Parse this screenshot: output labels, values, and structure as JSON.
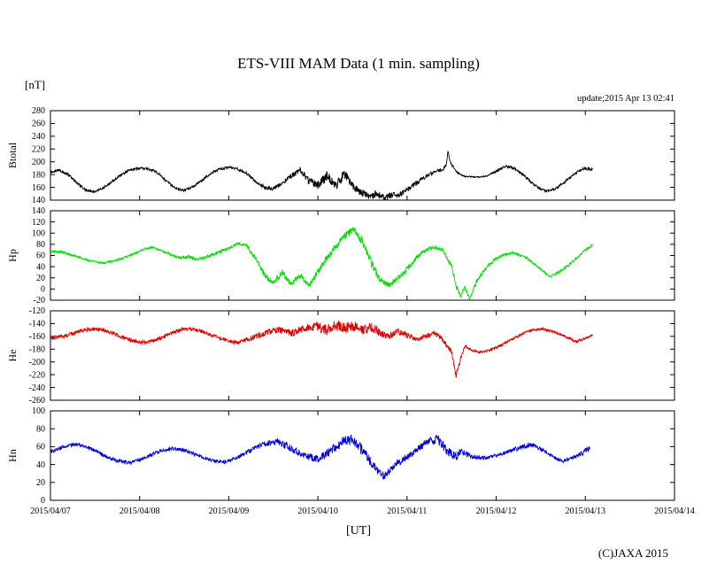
{
  "page": {
    "title": "ETS-VIII MAM Data (1 min. sampling)",
    "unit_label": "[nT]",
    "update_label": "update;2015 Apr 13 02:41",
    "x_axis_label": "[UT]",
    "copyright": "(C)JAXA 2015",
    "background": "#ffffff"
  },
  "chart_data": {
    "type": "line",
    "title": "ETS-VIII MAM Data (1 min. sampling)",
    "xlabel": "[UT]",
    "y_unit": "[nT]",
    "x_unit": "days since 2015/04/07 00:00 UT",
    "xlim": [
      0,
      7
    ],
    "x_tick_labels": [
      "2015/04/07",
      "2015/04/08",
      "2015/04/09",
      "2015/04/10",
      "2015/04/11",
      "2015/04/12",
      "2015/04/13",
      "2015/04/14"
    ],
    "grid": false,
    "legend_position": "none",
    "points_format": "[t_days, value_nT, noise_amplitude_nT]",
    "panels": [
      {
        "id": "btotal",
        "label": "Btotal",
        "color": "#000000",
        "ylim": [
          140,
          280
        ],
        "ytick_step": 20,
        "points": [
          [
            0,
            184,
            2
          ],
          [
            0.1,
            187,
            2
          ],
          [
            0.2,
            180,
            2
          ],
          [
            0.3,
            166,
            2
          ],
          [
            0.4,
            156,
            2
          ],
          [
            0.5,
            153,
            2
          ],
          [
            0.6,
            160,
            2
          ],
          [
            0.7,
            170,
            2
          ],
          [
            0.8,
            180,
            2
          ],
          [
            0.9,
            188,
            2
          ],
          [
            1,
            190,
            2
          ],
          [
            1.1,
            189,
            2
          ],
          [
            1.2,
            183,
            2
          ],
          [
            1.3,
            170,
            2
          ],
          [
            1.4,
            159,
            2
          ],
          [
            1.5,
            155,
            2
          ],
          [
            1.6,
            161,
            2
          ],
          [
            1.7,
            171,
            2
          ],
          [
            1.8,
            182,
            2
          ],
          [
            1.9,
            189,
            2
          ],
          [
            2,
            191,
            2
          ],
          [
            2.1,
            189,
            2
          ],
          [
            2.2,
            182,
            2
          ],
          [
            2.3,
            169,
            2
          ],
          [
            2.4,
            160,
            3
          ],
          [
            2.5,
            158,
            3
          ],
          [
            2.6,
            167,
            3
          ],
          [
            2.7,
            178,
            4
          ],
          [
            2.8,
            186,
            5
          ],
          [
            2.85,
            178,
            6
          ],
          [
            2.9,
            170,
            6
          ],
          [
            3,
            163,
            6
          ],
          [
            3.05,
            170,
            7
          ],
          [
            3.1,
            178,
            8
          ],
          [
            3.15,
            170,
            8
          ],
          [
            3.2,
            163,
            7
          ],
          [
            3.25,
            172,
            8
          ],
          [
            3.3,
            180,
            8
          ],
          [
            3.35,
            171,
            7
          ],
          [
            3.4,
            160,
            6
          ],
          [
            3.45,
            155,
            6
          ],
          [
            3.5,
            151,
            6
          ],
          [
            3.55,
            148,
            6
          ],
          [
            3.6,
            145,
            6
          ],
          [
            3.65,
            150,
            6
          ],
          [
            3.7,
            147,
            5
          ],
          [
            3.75,
            143,
            5
          ],
          [
            3.8,
            146,
            5
          ],
          [
            3.85,
            150,
            5
          ],
          [
            3.9,
            147,
            4
          ],
          [
            3.95,
            151,
            4
          ],
          [
            4,
            156,
            4
          ],
          [
            4.1,
            166,
            4
          ],
          [
            4.2,
            176,
            3
          ],
          [
            4.3,
            184,
            3
          ],
          [
            4.4,
            188,
            3
          ],
          [
            4.44,
            195,
            2
          ],
          [
            4.46,
            218,
            2
          ],
          [
            4.48,
            200,
            2
          ],
          [
            4.55,
            185,
            2
          ],
          [
            4.6,
            180,
            2
          ],
          [
            4.65,
            177,
            1
          ],
          [
            4.8,
            176,
            1
          ],
          [
            4.9,
            178,
            1
          ],
          [
            5,
            185,
            2
          ],
          [
            5.1,
            193,
            2
          ],
          [
            5.2,
            190,
            2
          ],
          [
            5.3,
            180,
            2
          ],
          [
            5.4,
            167,
            2
          ],
          [
            5.5,
            157,
            2
          ],
          [
            5.6,
            154,
            2
          ],
          [
            5.7,
            161,
            2
          ],
          [
            5.8,
            172,
            2
          ],
          [
            5.9,
            183,
            2
          ],
          [
            6,
            190,
            3
          ],
          [
            6.08,
            188,
            3
          ]
        ]
      },
      {
        "id": "hp",
        "label": "Hp",
        "color": "#00dd00",
        "ylim": [
          -20,
          140
        ],
        "ytick_step": 20,
        "points": [
          [
            0,
            68,
            2
          ],
          [
            0.15,
            65,
            2
          ],
          [
            0.3,
            58,
            2
          ],
          [
            0.45,
            50,
            2
          ],
          [
            0.6,
            47,
            2
          ],
          [
            0.75,
            52,
            2
          ],
          [
            0.9,
            60,
            2
          ],
          [
            1.05,
            72,
            2
          ],
          [
            1.15,
            75,
            2
          ],
          [
            1.3,
            65,
            2
          ],
          [
            1.45,
            55,
            3
          ],
          [
            1.55,
            58,
            3
          ],
          [
            1.65,
            52,
            3
          ],
          [
            1.8,
            60,
            3
          ],
          [
            1.95,
            70,
            3
          ],
          [
            2.1,
            80,
            3
          ],
          [
            2.2,
            78,
            3
          ],
          [
            2.3,
            55,
            4
          ],
          [
            2.4,
            25,
            5
          ],
          [
            2.5,
            10,
            5
          ],
          [
            2.6,
            30,
            5
          ],
          [
            2.7,
            8,
            5
          ],
          [
            2.8,
            25,
            5
          ],
          [
            2.9,
            6,
            5
          ],
          [
            3,
            30,
            6
          ],
          [
            3.1,
            55,
            6
          ],
          [
            3.2,
            75,
            6
          ],
          [
            3.3,
            95,
            6
          ],
          [
            3.4,
            107,
            6
          ],
          [
            3.5,
            85,
            8
          ],
          [
            3.6,
            45,
            8
          ],
          [
            3.7,
            15,
            6
          ],
          [
            3.8,
            8,
            6
          ],
          [
            3.9,
            20,
            5
          ],
          [
            4,
            35,
            5
          ],
          [
            4.1,
            55,
            4
          ],
          [
            4.2,
            68,
            4
          ],
          [
            4.3,
            75,
            3
          ],
          [
            4.4,
            70,
            3
          ],
          [
            4.5,
            40,
            5
          ],
          [
            4.55,
            5,
            5
          ],
          [
            4.6,
            -14,
            4
          ],
          [
            4.65,
            5,
            4
          ],
          [
            4.7,
            -18,
            3
          ],
          [
            4.8,
            20,
            4
          ],
          [
            4.9,
            40,
            3
          ],
          [
            5,
            55,
            3
          ],
          [
            5.1,
            62,
            2
          ],
          [
            5.2,
            65,
            2
          ],
          [
            5.35,
            55,
            2
          ],
          [
            5.5,
            35,
            2
          ],
          [
            5.6,
            22,
            2
          ],
          [
            5.7,
            30,
            3
          ],
          [
            5.8,
            42,
            3
          ],
          [
            5.9,
            55,
            2
          ],
          [
            6,
            70,
            2
          ],
          [
            6.08,
            78,
            2
          ]
        ]
      },
      {
        "id": "he",
        "label": "He",
        "color": "#dd0000",
        "ylim": [
          -260,
          -120
        ],
        "ytick_step": 20,
        "points": [
          [
            0,
            -163,
            3
          ],
          [
            0.15,
            -160,
            3
          ],
          [
            0.3,
            -153,
            3
          ],
          [
            0.45,
            -148,
            3
          ],
          [
            0.6,
            -150,
            3
          ],
          [
            0.75,
            -158,
            3
          ],
          [
            0.9,
            -166,
            3
          ],
          [
            1.05,
            -170,
            3
          ],
          [
            1.2,
            -165,
            3
          ],
          [
            1.35,
            -155,
            3
          ],
          [
            1.5,
            -148,
            3
          ],
          [
            1.65,
            -150,
            3
          ],
          [
            1.8,
            -158,
            3
          ],
          [
            1.95,
            -166,
            3
          ],
          [
            2.1,
            -170,
            3
          ],
          [
            2.25,
            -163,
            4
          ],
          [
            2.4,
            -155,
            5
          ],
          [
            2.55,
            -150,
            5
          ],
          [
            2.7,
            -155,
            6
          ],
          [
            2.85,
            -148,
            6
          ],
          [
            3,
            -145,
            8
          ],
          [
            3.1,
            -150,
            8
          ],
          [
            3.2,
            -142,
            8
          ],
          [
            3.3,
            -148,
            9
          ],
          [
            3.4,
            -143,
            9
          ],
          [
            3.5,
            -150,
            8
          ],
          [
            3.6,
            -145,
            8
          ],
          [
            3.7,
            -155,
            6
          ],
          [
            3.8,
            -160,
            5
          ],
          [
            3.9,
            -152,
            5
          ],
          [
            4,
            -158,
            5
          ],
          [
            4.1,
            -165,
            4
          ],
          [
            4.2,
            -160,
            4
          ],
          [
            4.3,
            -155,
            4
          ],
          [
            4.4,
            -165,
            4
          ],
          [
            4.5,
            -185,
            5
          ],
          [
            4.55,
            -222,
            4
          ],
          [
            4.6,
            -195,
            4
          ],
          [
            4.65,
            -175,
            3
          ],
          [
            4.7,
            -180,
            2
          ],
          [
            4.8,
            -185,
            2
          ],
          [
            4.9,
            -183,
            2
          ],
          [
            5,
            -178,
            2
          ],
          [
            5.1,
            -170,
            2
          ],
          [
            5.2,
            -163,
            2
          ],
          [
            5.35,
            -152,
            2
          ],
          [
            5.5,
            -148,
            2
          ],
          [
            5.65,
            -153,
            2
          ],
          [
            5.8,
            -162,
            2
          ],
          [
            5.9,
            -168,
            2
          ],
          [
            6,
            -163,
            2
          ],
          [
            6.08,
            -158,
            2
          ]
        ]
      },
      {
        "id": "hn",
        "label": "Hn",
        "color": "#0000dd",
        "ylim": [
          0,
          100
        ],
        "ytick_step": 20,
        "points": [
          [
            0,
            54,
            2
          ],
          [
            0.15,
            60,
            2
          ],
          [
            0.3,
            63,
            2
          ],
          [
            0.45,
            58,
            2
          ],
          [
            0.6,
            50,
            2
          ],
          [
            0.75,
            44,
            2
          ],
          [
            0.9,
            42,
            2
          ],
          [
            1.05,
            47,
            2
          ],
          [
            1.2,
            54,
            2
          ],
          [
            1.35,
            58,
            2
          ],
          [
            1.5,
            56,
            2
          ],
          [
            1.65,
            50,
            2
          ],
          [
            1.8,
            45,
            2
          ],
          [
            1.95,
            43,
            2
          ],
          [
            2.1,
            48,
            2
          ],
          [
            2.25,
            56,
            3
          ],
          [
            2.4,
            63,
            3
          ],
          [
            2.55,
            66,
            4
          ],
          [
            2.7,
            58,
            4
          ],
          [
            2.85,
            50,
            4
          ],
          [
            3,
            46,
            4
          ],
          [
            3.1,
            52,
            5
          ],
          [
            3.2,
            60,
            5
          ],
          [
            3.3,
            67,
            6
          ],
          [
            3.4,
            68,
            6
          ],
          [
            3.5,
            55,
            6
          ],
          [
            3.6,
            42,
            5
          ],
          [
            3.7,
            30,
            5
          ],
          [
            3.75,
            27,
            4
          ],
          [
            3.85,
            38,
            4
          ],
          [
            3.95,
            45,
            4
          ],
          [
            4.05,
            52,
            4
          ],
          [
            4.15,
            60,
            4
          ],
          [
            4.25,
            66,
            5
          ],
          [
            4.35,
            68,
            5
          ],
          [
            4.45,
            55,
            5
          ],
          [
            4.55,
            48,
            5
          ],
          [
            4.6,
            55,
            4
          ],
          [
            4.7,
            50,
            3
          ],
          [
            4.8,
            48,
            3
          ],
          [
            4.9,
            47,
            2
          ],
          [
            5,
            50,
            2
          ],
          [
            5.15,
            55,
            2
          ],
          [
            5.3,
            60,
            3
          ],
          [
            5.4,
            62,
            3
          ],
          [
            5.55,
            55,
            2
          ],
          [
            5.65,
            48,
            2
          ],
          [
            5.75,
            44,
            2
          ],
          [
            5.85,
            47,
            2
          ],
          [
            5.95,
            52,
            3
          ],
          [
            6.05,
            58,
            3
          ]
        ]
      }
    ]
  }
}
